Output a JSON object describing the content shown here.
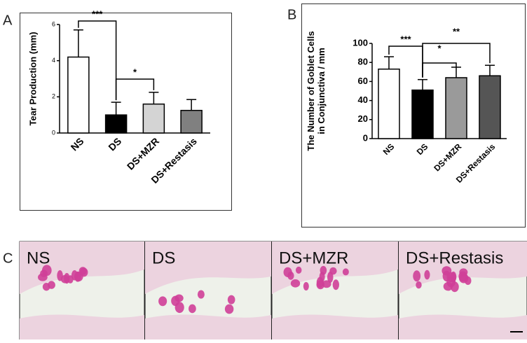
{
  "chart_data": [
    {
      "type": "bar",
      "panel": "A",
      "ylabel": [
        "Tear Production (mm)"
      ],
      "categories": [
        "NS",
        "DS",
        "DS+MZR",
        "DS+Restasis"
      ],
      "values": [
        4.2,
        1.0,
        1.6,
        1.25
      ],
      "errors": [
        1.5,
        0.7,
        0.65,
        0.6
      ],
      "colors": [
        "#ffffff",
        "#000000",
        "#d4d4d4",
        "#808080"
      ],
      "ylim": [
        0,
        6
      ],
      "yticks": [
        0,
        2,
        4,
        6
      ],
      "annotations": [
        {
          "text": "***",
          "from": 0,
          "to": 1
        },
        {
          "text": "*",
          "from": 1,
          "to": 2
        }
      ]
    },
    {
      "type": "bar",
      "panel": "B",
      "ylabel": [
        "The Number of Goblet Cells",
        "in Conjunctiva / mm"
      ],
      "categories": [
        "NS",
        "DS",
        "DS+MZR",
        "DS+Restasis"
      ],
      "values": [
        73,
        51,
        64,
        66
      ],
      "errors": [
        13,
        11,
        11,
        11
      ],
      "colors": [
        "#ffffff",
        "#000000",
        "#9a9a9a",
        "#555555"
      ],
      "ylim": [
        0,
        100
      ],
      "yticks": [
        0,
        20,
        40,
        60,
        80,
        100
      ],
      "annotations": [
        {
          "text": "***",
          "from": 0,
          "to": 1
        },
        {
          "text": "*",
          "from": 1,
          "to": 2
        },
        {
          "text": "**",
          "from": 1,
          "to": 3
        }
      ]
    }
  ],
  "micrographs": {
    "panel": "C",
    "labels": [
      "NS",
      "DS",
      "DS+MZR",
      "DS+Restasis"
    ]
  }
}
